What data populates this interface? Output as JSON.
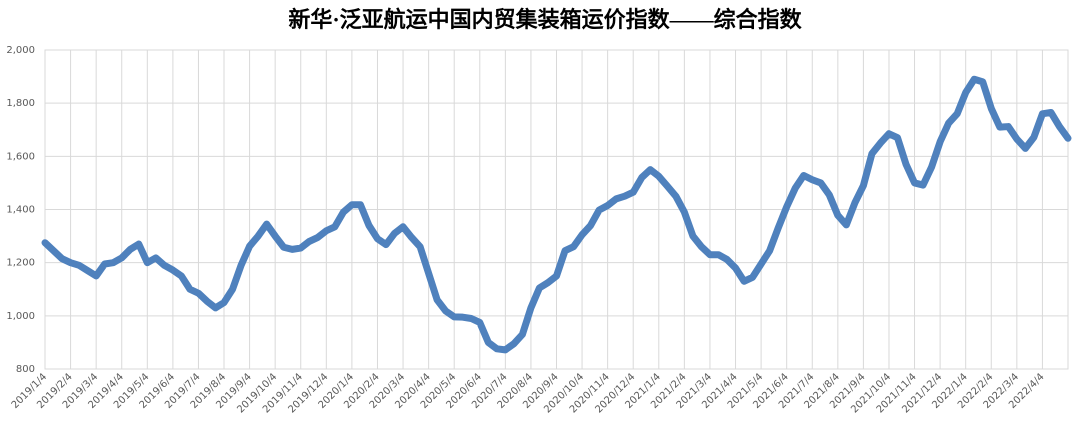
{
  "chart_data": {
    "type": "line",
    "title": "新华·泛亚航运中国内贸集装箱运价指数——综合指数",
    "categories": [
      "2019/1/4",
      null,
      null,
      "2019/2/4",
      null,
      null,
      "2019/3/4",
      null,
      null,
      "2019/4/4",
      null,
      null,
      "2019/5/4",
      null,
      null,
      "2019/6/4",
      null,
      null,
      "2019/7/4",
      null,
      null,
      "2019/8/4",
      null,
      null,
      "2019/9/4",
      null,
      null,
      "2019/10/4",
      null,
      null,
      "2019/11/4",
      null,
      null,
      "2019/12/4",
      null,
      null,
      "2020/1/4",
      null,
      null,
      "2020/2/4",
      null,
      null,
      "2020/3/4",
      null,
      null,
      "2020/4/4",
      null,
      null,
      "2020/5/4",
      null,
      null,
      "2020/6/4",
      null,
      null,
      "2020/7/4",
      null,
      null,
      "2020/8/4",
      null,
      null,
      "2020/9/4",
      null,
      null,
      "2020/10/4",
      null,
      null,
      "2020/11/4",
      null,
      null,
      "2020/12/4",
      null,
      null,
      "2021/1/4",
      null,
      null,
      "2021/2/4",
      null,
      null,
      "2021/3/4",
      null,
      null,
      "2021/4/4",
      null,
      null,
      "2021/5/4",
      null,
      null,
      "2021/6/4",
      null,
      null,
      "2021/7/4",
      null,
      null,
      "2021/8/4",
      null,
      null,
      "2021/9/4",
      null,
      null,
      "2021/10/4",
      null,
      null,
      "2021/11/4",
      null,
      null,
      "2021/12/4",
      null,
      null,
      "2022/1/4",
      null,
      null,
      "2022/2/4",
      null,
      null,
      "2022/3/4",
      null,
      null,
      "2022/4/4",
      null,
      null,
      null
    ],
    "series": [
      {
        "name": "综合指数",
        "color": "#4f81bd",
        "values": [
          1275,
          1245,
          1215,
          1200,
          1190,
          1170,
          1150,
          1195,
          1200,
          1218,
          1250,
          1270,
          1200,
          1218,
          1190,
          1172,
          1150,
          1100,
          1085,
          1055,
          1030,
          1050,
          1100,
          1190,
          1262,
          1300,
          1345,
          1300,
          1258,
          1250,
          1255,
          1280,
          1295,
          1320,
          1335,
          1390,
          1418,
          1418,
          1340,
          1290,
          1268,
          1310,
          1335,
          1295,
          1260,
          1160,
          1060,
          1018,
          996,
          995,
          990,
          975,
          900,
          876,
          872,
          895,
          930,
          1030,
          1105,
          1125,
          1150,
          1245,
          1260,
          1305,
          1340,
          1398,
          1415,
          1440,
          1450,
          1465,
          1520,
          1550,
          1525,
          1488,
          1450,
          1390,
          1300,
          1260,
          1230,
          1230,
          1212,
          1180,
          1130,
          1145,
          1195,
          1245,
          1330,
          1410,
          1480,
          1528,
          1512,
          1500,
          1455,
          1378,
          1342,
          1425,
          1490,
          1610,
          1650,
          1685,
          1670,
          1570,
          1500,
          1492,
          1560,
          1655,
          1725,
          1760,
          1840,
          1890,
          1880,
          1780,
          1710,
          1712,
          1665,
          1630,
          1672,
          1760,
          1765,
          1712,
          1668
        ]
      }
    ],
    "ylim": [
      800,
      2000
    ],
    "yticks": [
      800,
      {
        "value": 1000,
        "label": "1,000"
      },
      {
        "value": 1200,
        "label": "1,200"
      },
      {
        "value": 1400,
        "label": "1,400"
      },
      {
        "value": 1600,
        "label": "1,600"
      },
      {
        "value": 1800,
        "label": "1,800"
      },
      {
        "value": 2000,
        "label": "2,000"
      }
    ],
    "grid": true
  }
}
